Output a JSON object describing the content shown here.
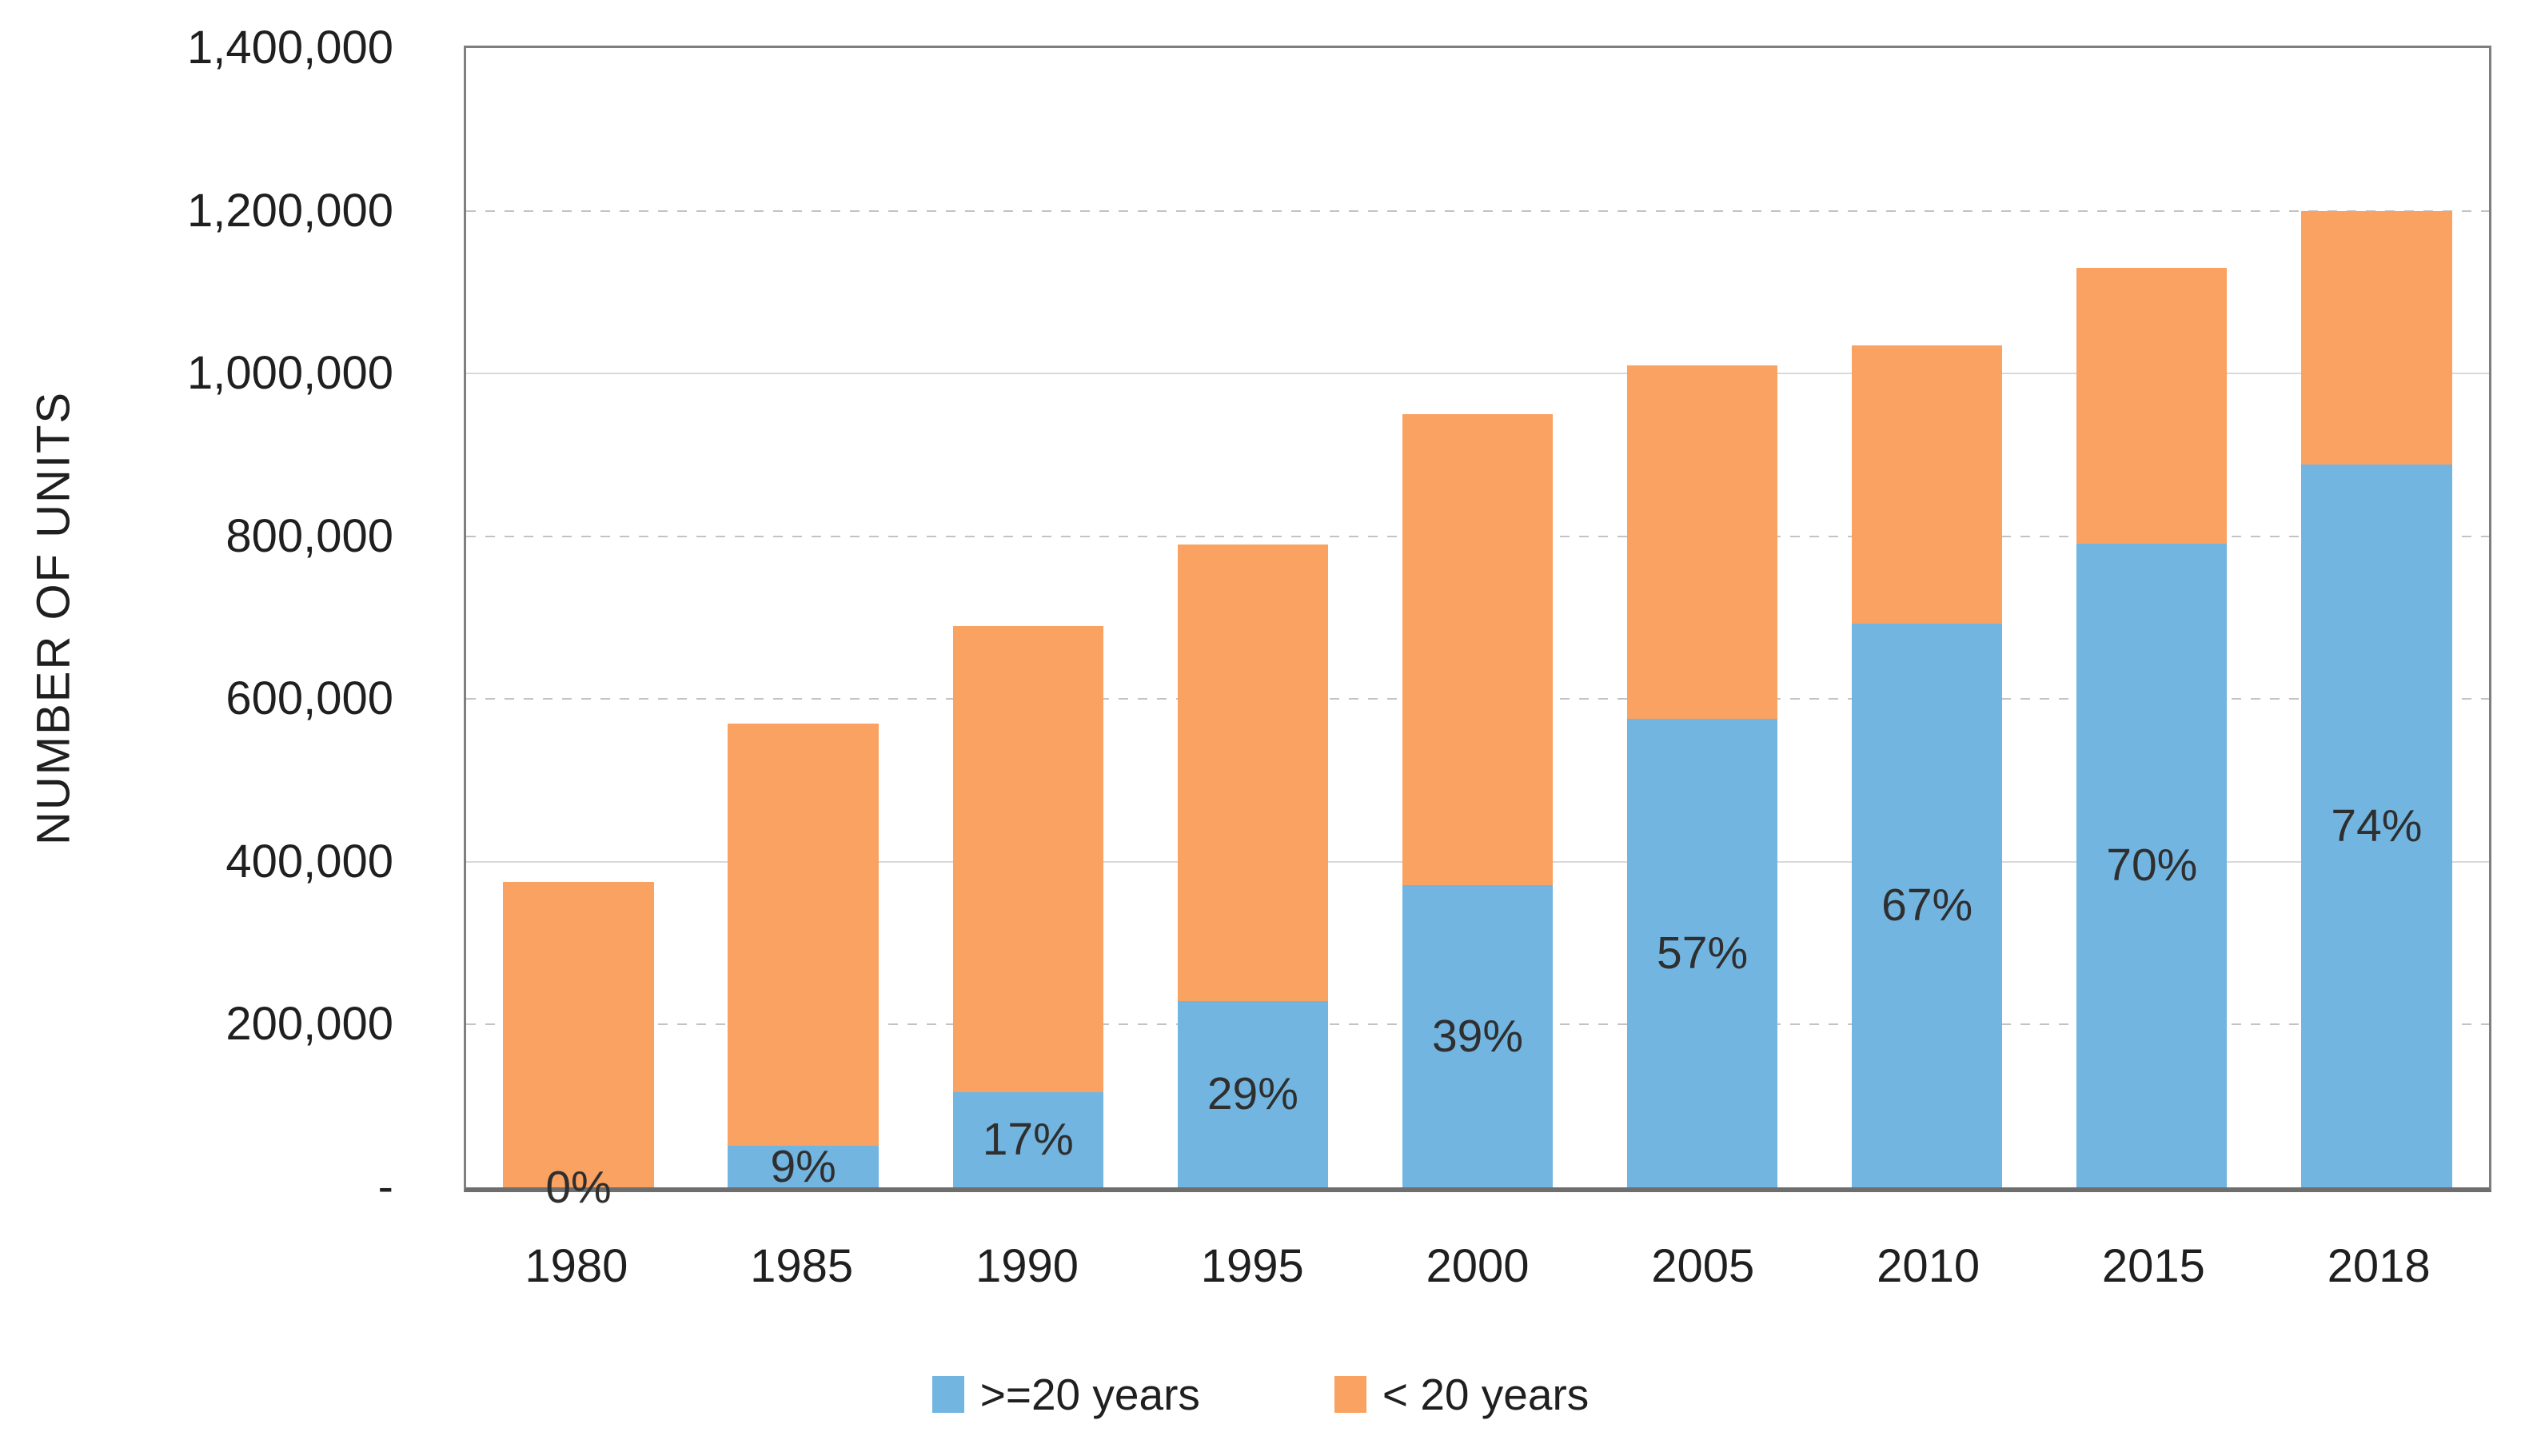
{
  "chart_data": {
    "type": "bar",
    "stacked": true,
    "title": "",
    "xlabel": "",
    "ylabel": "NUMBER OF UNITS",
    "categories": [
      "1980",
      "1985",
      "1990",
      "1995",
      "2000",
      "2005",
      "2010",
      "2015",
      "2018"
    ],
    "series": [
      {
        "name": ">=20 years",
        "color": "#72B5E1",
        "values": [
          0,
          51000,
          117000,
          229000,
          371000,
          576000,
          693000,
          791000,
          888000
        ]
      },
      {
        "name": "< 20 years",
        "color": "#F9A262",
        "values": [
          375000,
          519000,
          573000,
          561000,
          579000,
          434000,
          342000,
          339000,
          312000
        ]
      }
    ],
    "stack_totals": [
      375000,
      570000,
      690000,
      790000,
      950000,
      1010000,
      1035000,
      1130000,
      1200000
    ],
    "bar_labels": [
      "0%",
      "9%",
      "17%",
      "29%",
      "39%",
      "57%",
      "67%",
      "70%",
      "74%"
    ],
    "bar_label_series": ">=20 years",
    "ylim": [
      0,
      1400000
    ],
    "ytick_step": 200000,
    "yticks": [
      {
        "value": 0,
        "label": "-"
      },
      {
        "value": 200000,
        "label": "200,000",
        "grid": "dotted"
      },
      {
        "value": 400000,
        "label": "400,000",
        "grid": "solid"
      },
      {
        "value": 600000,
        "label": "600,000",
        "grid": "dotted"
      },
      {
        "value": 800000,
        "label": "800,000",
        "grid": "dotted"
      },
      {
        "value": 1000000,
        "label": "1,000,000",
        "grid": "solid"
      },
      {
        "value": 1200000,
        "label": "1,200,000",
        "grid": "dotted"
      },
      {
        "value": 1400000,
        "label": "1,400,000"
      }
    ],
    "grid": true,
    "legend_position": "bottom"
  },
  "colors": {
    "ge20_blue": "#72B5E1",
    "lt20_orange": "#F9A262",
    "plot_border": "#7F7F7F",
    "axis_line": "#6E6E6E",
    "gridline_solid": "#D9D9D9",
    "gridline_dotted": "#C3C3C3",
    "text": "#1F1F1F"
  }
}
